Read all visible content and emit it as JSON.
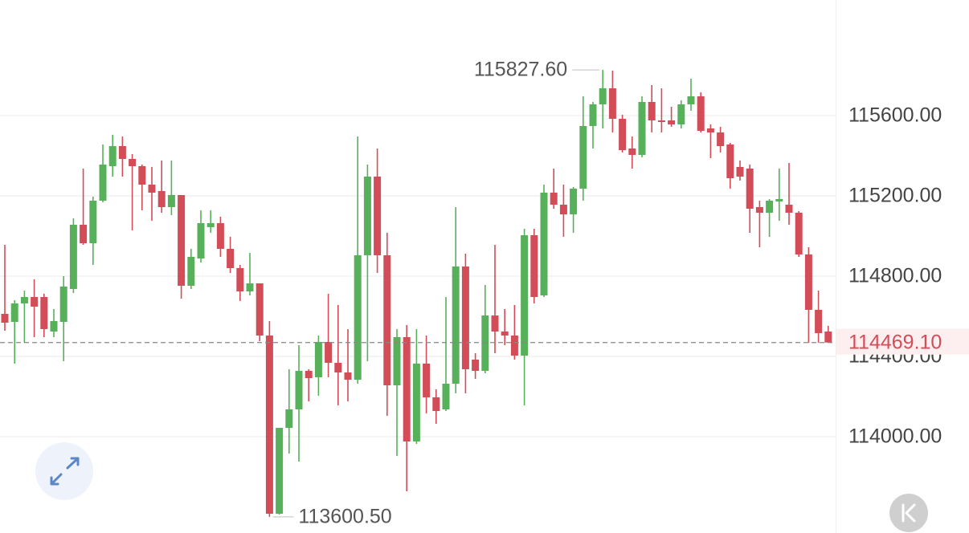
{
  "chart_data": {
    "type": "candlestick",
    "up_color": "#57b05a",
    "down_color": "#d24d57",
    "grid": true,
    "ylim": [
      113520,
      116176
    ],
    "yticks": [
      {
        "value": 114000,
        "label": "114000.00"
      },
      {
        "value": 114400,
        "label": "114400.00"
      },
      {
        "value": 114800,
        "label": "114800.00"
      },
      {
        "value": 115200,
        "label": "115200.00"
      },
      {
        "value": 115600,
        "label": "115600.00"
      }
    ],
    "last_price": {
      "value": 114469.1,
      "label": "114469.10"
    },
    "annotations": [
      {
        "value": 115827.6,
        "label": "115827.60"
      },
      {
        "value": 113600.5,
        "label": "113600.50"
      }
    ],
    "open": [
      114612,
      114572,
      114664,
      114696,
      114696,
      114524,
      114572,
      114736,
      115056,
      114964,
      115176,
      115348,
      115448,
      115384,
      115348,
      115256,
      115224,
      115144,
      115204,
      114752,
      114888,
      115044,
      115064,
      114936,
      114840,
      114724,
      114764,
      114504,
      113616,
      114044,
      114136,
      114328,
      114296,
      114472,
      114368,
      114320,
      114284,
      114904,
      115296,
      114904,
      114256,
      114496,
      113976,
      114364,
      114196,
      114136,
      114264,
      114848,
      114384,
      114328,
      114604,
      114524,
      114504,
      114404,
      115004,
      114704,
      115216,
      115156,
      115108,
      115236,
      115548,
      115656,
      115736,
      115584,
      115436,
      115404,
      115668,
      115576,
      115576,
      115556,
      115656,
      115696,
      115536,
      115516,
      115456,
      115344,
      115336,
      115144,
      115116,
      115172,
      115156,
      115116,
      114908,
      114632,
      114524
    ],
    "high": [
      114956,
      114680,
      114728,
      114784,
      114712,
      114636,
      114800,
      115088,
      115336,
      115196,
      115456,
      115504,
      115496,
      115408,
      115356,
      115344,
      115376,
      115376,
      115204,
      114936,
      115128,
      115128,
      115096,
      114996,
      114856,
      114916,
      114764,
      114576,
      114044,
      114336,
      114456,
      114336,
      114504,
      114712,
      114656,
      114536,
      115496,
      115356,
      115436,
      115016,
      114536,
      114556,
      114536,
      114504,
      114236,
      114696,
      115144,
      114912,
      114416,
      114756,
      114956,
      114636,
      114656,
      115036,
      115036,
      115256,
      115336,
      115256,
      115244,
      115696,
      115668,
      115827.6,
      115824,
      115604,
      115496,
      115696,
      115752,
      115736,
      115644,
      115676,
      115784,
      115716,
      115556,
      115544,
      115464,
      115376,
      115356,
      115176,
      115184,
      115336,
      115364,
      115124,
      114944,
      114728,
      114552
    ],
    "low": [
      114528,
      114364,
      114468,
      114496,
      114496,
      114496,
      114376,
      114716,
      114956,
      114856,
      115168,
      115296,
      115296,
      115028,
      115128,
      115076,
      115116,
      115104,
      114688,
      114736,
      114868,
      115016,
      114896,
      114816,
      114676,
      114704,
      114476,
      113600.5,
      113612,
      113916,
      113876,
      114176,
      114204,
      114296,
      114156,
      114176,
      114264,
      114376,
      114816,
      114104,
      113904,
      113728,
      113964,
      114116,
      114064,
      114128,
      114216,
      114216,
      114288,
      114316,
      114416,
      114456,
      114384,
      114156,
      114664,
      114696,
      115136,
      114996,
      115016,
      115176,
      115436,
      115536,
      115516,
      115416,
      115336,
      115392,
      115516,
      115516,
      115544,
      115536,
      115624,
      115516,
      115388,
      115416,
      115236,
      115276,
      115016,
      114944,
      114996,
      115076,
      115056,
      114896,
      114468,
      114468,
      114468
    ],
    "close": [
      114568,
      114664,
      114696,
      114648,
      114536,
      114576,
      114748,
      115056,
      114964,
      115176,
      115356,
      115448,
      115384,
      115348,
      115256,
      115216,
      115144,
      115204,
      114752,
      114896,
      115064,
      115064,
      114936,
      114840,
      114724,
      114764,
      114504,
      113616,
      114044,
      114136,
      114328,
      114292,
      114472,
      114368,
      114320,
      114284,
      114904,
      115296,
      114904,
      114256,
      114496,
      113976,
      114364,
      114196,
      114128,
      114264,
      114848,
      114336,
      114328,
      114604,
      114524,
      114504,
      114404,
      115004,
      114696,
      115216,
      115156,
      115108,
      115236,
      115548,
      115656,
      115736,
      115584,
      115428,
      115404,
      115668,
      115576,
      115568,
      115556,
      115656,
      115696,
      115524,
      115516,
      115448,
      115288,
      115296,
      115136,
      115116,
      115176,
      115184,
      115116,
      114908,
      114632,
      114516,
      114469.1
    ]
  }
}
